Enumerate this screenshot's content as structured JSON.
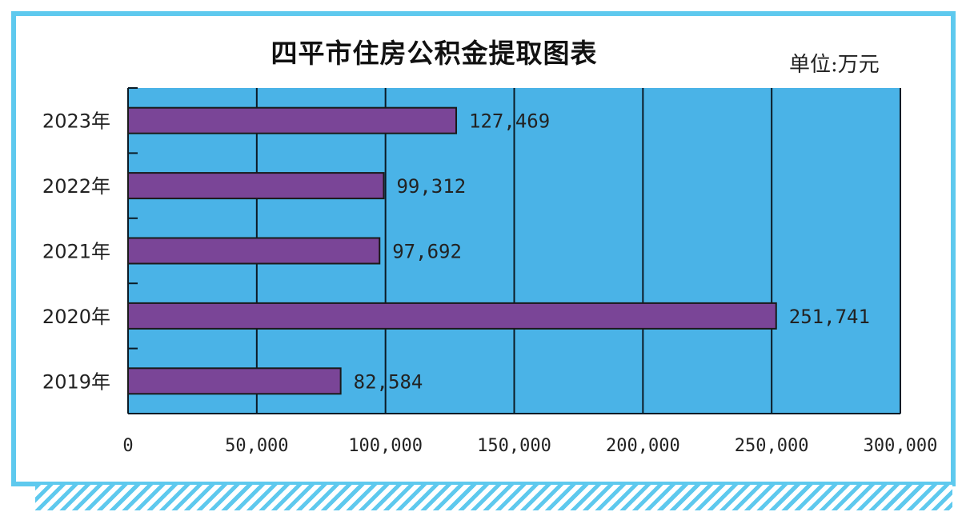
{
  "header": {
    "title": "四平市住房公积金提取图表",
    "unit": "单位:万元"
  },
  "colors": {
    "frame": "#5ec9ee",
    "plot_background": "#4ab3e7",
    "bar": "#7a4597"
  },
  "chart_data": {
    "type": "bar",
    "orientation": "horizontal",
    "title": "四平市住房公积金提取图表",
    "unit_label": "单位:万元",
    "categories": [
      "2023年",
      "2022年",
      "2021年",
      "2020年",
      "2019年"
    ],
    "values": [
      127469,
      99312,
      97692,
      251741,
      82584
    ],
    "value_labels": [
      "127,469",
      "99,312",
      "97,692",
      "251,741",
      "82,584"
    ],
    "x_ticks": [
      0,
      50000,
      100000,
      150000,
      200000,
      250000,
      300000
    ],
    "x_tick_labels": [
      "0",
      "50,000",
      "100,000",
      "150,000",
      "200,000",
      "250,000",
      "300,000"
    ],
    "xlim": [
      0,
      300000
    ],
    "grid": true,
    "legend": "none"
  }
}
